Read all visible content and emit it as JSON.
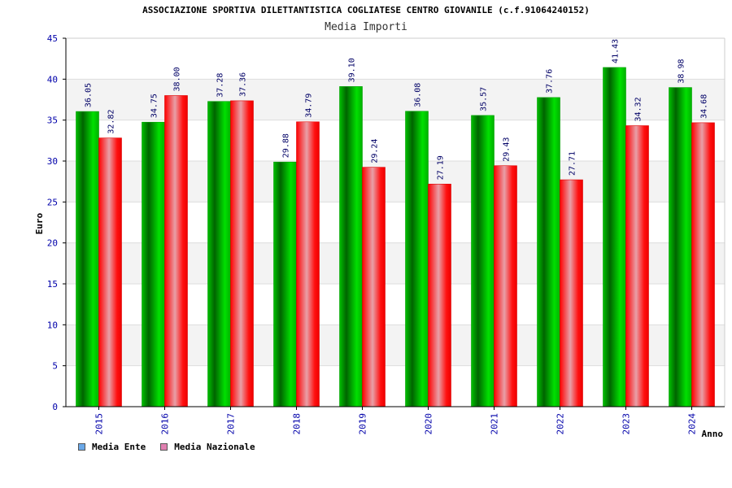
{
  "chart_data": {
    "type": "bar",
    "title": "ASSOCIAZIONE SPORTIVA DILETTANTISTICA COGLIATESE CENTRO GIOVANILE (c.f.91064240152)",
    "subtitle": "Media Importi",
    "xlabel": "Anno",
    "ylabel": "Euro",
    "ylim": [
      0,
      45
    ],
    "yticks": [
      0,
      5,
      10,
      15,
      20,
      25,
      30,
      35,
      40,
      45
    ],
    "grid": true,
    "legend_position": "bottom-left",
    "categories": [
      "2015",
      "2016",
      "2017",
      "2018",
      "2019",
      "2020",
      "2021",
      "2022",
      "2023",
      "2024"
    ],
    "series": [
      {
        "name": "Media Ente",
        "values": [
          36.05,
          34.75,
          37.28,
          29.88,
          39.1,
          36.08,
          35.57,
          37.76,
          41.43,
          38.98
        ],
        "labels": [
          "36.05",
          "34.75",
          "37.28",
          "29.88",
          "39.10",
          "36.08",
          "35.57",
          "37.76",
          "41.43",
          "38.98"
        ],
        "bar_color": "#00b000",
        "legend_color": "#6aa8e8"
      },
      {
        "name": "Media Nazionale",
        "values": [
          32.82,
          38.0,
          37.36,
          34.79,
          29.24,
          27.19,
          29.43,
          27.71,
          34.32,
          34.68
        ],
        "labels": [
          "32.82",
          "38.00",
          "37.36",
          "34.79",
          "29.24",
          "27.19",
          "29.43",
          "27.71",
          "34.32",
          "34.68"
        ],
        "bar_color": "#ee0000",
        "legend_color": "#e080b0"
      }
    ]
  }
}
